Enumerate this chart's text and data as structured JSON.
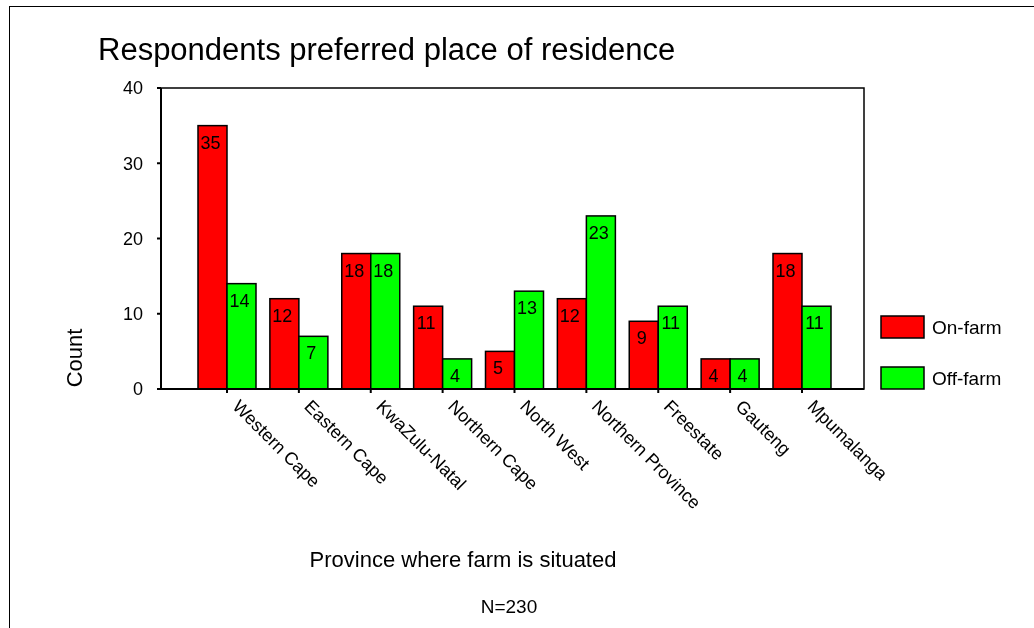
{
  "chart_data": {
    "type": "bar",
    "title": "Respondents preferred place of residence",
    "xlabel": "Province where farm is situated",
    "ylabel": "Count",
    "annotations": [
      "N=230"
    ],
    "categories": [
      "Western Cape",
      "Eastern Cape",
      "KwaZulu-Natal",
      "Northern Cape",
      "North West",
      "Northern Province",
      "Freestate",
      "Gauteng",
      "Mpumalanga"
    ],
    "series": [
      {
        "name": "On-farm",
        "color": "#ff0000",
        "values": [
          35,
          12,
          18,
          11,
          5,
          12,
          9,
          4,
          18
        ]
      },
      {
        "name": "Off-farm",
        "color": "#00ff00",
        "values": [
          14,
          7,
          18,
          4,
          13,
          23,
          11,
          4,
          11
        ]
      }
    ],
    "ylim": [
      0,
      40
    ],
    "yticks": [
      0,
      10,
      20,
      30,
      40
    ],
    "data_labels": true,
    "legend": "right"
  }
}
